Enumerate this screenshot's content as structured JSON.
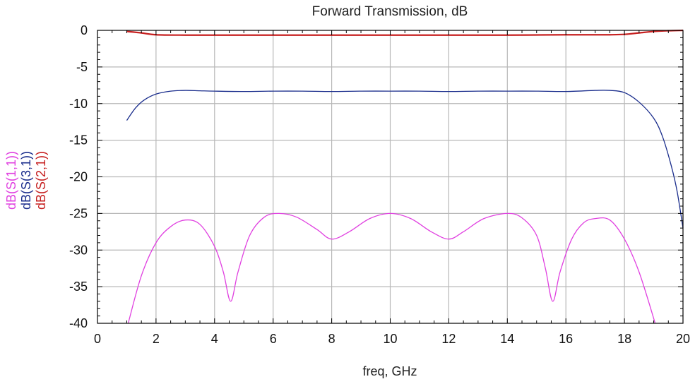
{
  "chart_data": {
    "type": "line",
    "title": "Forward Transmission, dB",
    "xlabel": "freq, GHz",
    "xlim": [
      0,
      20
    ],
    "ylim": [
      -40,
      0
    ],
    "x_ticks": [
      0,
      2,
      4,
      6,
      8,
      10,
      12,
      14,
      16,
      18,
      20
    ],
    "x_tick_labels": [
      "0",
      "2",
      "4",
      "6",
      "8",
      "10",
      "12",
      "14",
      "16",
      "18",
      "20"
    ],
    "y_ticks": [
      0,
      -5,
      -10,
      -15,
      -20,
      -25,
      -30,
      -35,
      -40
    ],
    "y_tick_labels": [
      "0",
      "-5",
      "-10",
      "-15",
      "-20",
      "-25",
      "-30",
      "-35",
      "-40"
    ],
    "grid": true,
    "series": [
      {
        "name": "dB(S(1,1))",
        "color": "#e040e0",
        "x": [
          1.05,
          1.5,
          2.0,
          2.5,
          3.0,
          3.5,
          4.0,
          4.3,
          4.55,
          4.8,
          5.2,
          5.7,
          6.2,
          6.8,
          7.5,
          8.0,
          8.6,
          9.3,
          10.0,
          10.7,
          11.4,
          12.0,
          12.5,
          13.2,
          14.0,
          14.5,
          15.0,
          15.3,
          15.55,
          15.8,
          16.2,
          16.6,
          17.0,
          17.5,
          18.0,
          18.5,
          19.05
        ],
        "y": [
          -40,
          -33.5,
          -29.0,
          -26.8,
          -25.9,
          -26.5,
          -29.5,
          -33.0,
          -37.0,
          -33.0,
          -28.0,
          -25.5,
          -25.0,
          -25.5,
          -27.2,
          -28.5,
          -27.5,
          -25.7,
          -25.0,
          -25.7,
          -27.5,
          -28.5,
          -27.5,
          -25.7,
          -25.0,
          -25.6,
          -28.0,
          -32.5,
          -37.0,
          -33.0,
          -28.5,
          -26.3,
          -25.7,
          -25.9,
          -28.5,
          -33.0,
          -40
        ]
      },
      {
        "name": "dB(S(3,1))",
        "color": "#1a2d8c",
        "x": [
          1.0,
          1.3,
          1.6,
          2.0,
          2.5,
          3.0,
          3.5,
          4.0,
          5.0,
          6.0,
          7.0,
          8.0,
          9.0,
          10.0,
          11.0,
          12.0,
          13.0,
          14.0,
          15.0,
          16.0,
          17.0,
          17.5,
          18.0,
          18.5,
          19.0,
          19.3,
          19.6,
          19.8,
          20.0
        ],
        "y": [
          -12.3,
          -10.6,
          -9.5,
          -8.7,
          -8.3,
          -8.2,
          -8.25,
          -8.3,
          -8.35,
          -8.3,
          -8.3,
          -8.35,
          -8.3,
          -8.3,
          -8.3,
          -8.35,
          -8.3,
          -8.3,
          -8.3,
          -8.35,
          -8.2,
          -8.2,
          -8.5,
          -9.8,
          -12.0,
          -14.5,
          -18.5,
          -22.0,
          -27.0
        ]
      },
      {
        "name": "dB(S(2,1))",
        "color": "#c62020",
        "x": [
          1.0,
          1.5,
          2.0,
          3.0,
          4.0,
          6.0,
          8.0,
          10.0,
          12.0,
          14.0,
          16.0,
          17.0,
          17.5,
          18.0,
          18.5,
          19.0,
          19.5,
          20.0
        ],
        "y": [
          -0.15,
          -0.35,
          -0.6,
          -0.65,
          -0.65,
          -0.65,
          -0.65,
          -0.65,
          -0.65,
          -0.65,
          -0.6,
          -0.6,
          -0.6,
          -0.55,
          -0.35,
          -0.15,
          -0.05,
          0.0
        ]
      }
    ]
  }
}
